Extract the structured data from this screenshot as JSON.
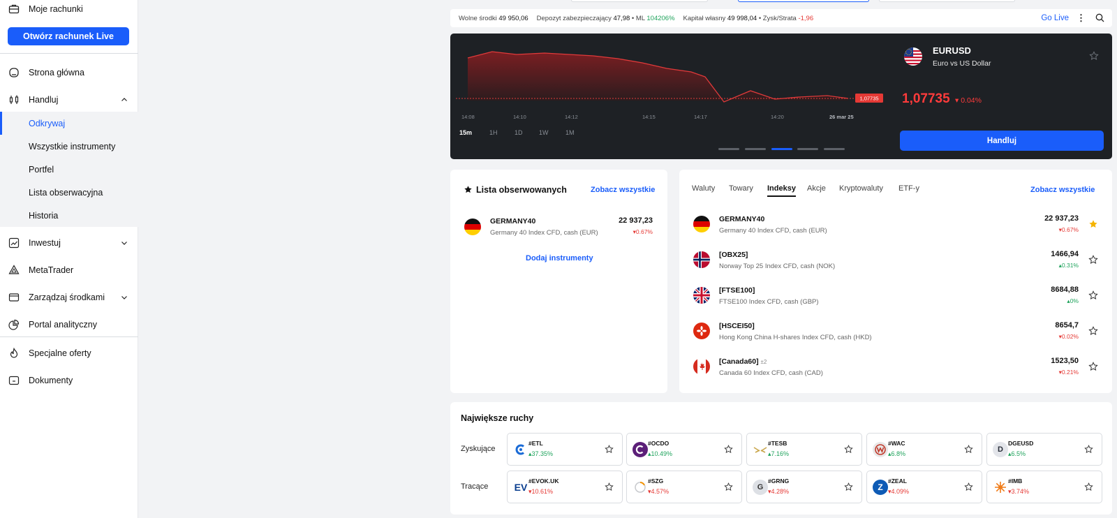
{
  "sidebar": {
    "accounts_label": "Moje rachunki",
    "open_live_label": "Otwórz rachunek Live",
    "home_label": "Strona główna",
    "trade_label": "Handluj",
    "trade_sub": [
      "Odkrywaj",
      "Wszystkie instrumenty",
      "Portfel",
      "Lista obserwacyjna",
      "Historia"
    ],
    "invest_label": "Inwestuj",
    "metatrader_label": "MetaTrader",
    "funds_label": "Zarządzaj środkami",
    "analytics_label": "Portal analityczny",
    "offers_label": "Specjalne oferty",
    "documents_label": "Dokumenty"
  },
  "account_bar": {
    "free_funds_label": "Wolne środki",
    "free_funds_value": "49 950,06",
    "margin_label": "Depozyt zabezpieczający",
    "margin_value": "47,98",
    "ml_label": "• ML",
    "ml_value": "104206%",
    "equity_label": "Kapitał własny",
    "equity_value": "49 998,04",
    "pl_label": "• Zysk/Strata",
    "pl_value": "-1,96",
    "go_live": "Go Live",
    "more": "⋮"
  },
  "chart": {
    "symbol": "EURUSD",
    "description": "Euro vs US Dollar",
    "price": "1,07735",
    "change": "0.04%",
    "price_tag": "1,07735",
    "time_labels": [
      "14:08",
      "14:10",
      "14:12",
      "14:15",
      "14:17",
      "14:20",
      "26 mar 25"
    ],
    "timeframes": [
      "15m",
      "1H",
      "1D",
      "1W",
      "1M"
    ],
    "active_timeframe": "15m",
    "trade_button": "Handluj",
    "colors": {
      "line": "#e03a3a",
      "area_top": "#7a1e22",
      "background": "#1e2125"
    }
  },
  "watchlist": {
    "title": "Lista obserwowanych",
    "see_all": "Zobacz wszystkie",
    "item": {
      "name": "GERMANY40",
      "desc": "Germany 40 Index CFD, cash (EUR)",
      "price": "22 937,23",
      "change": "0.67%"
    },
    "add_instruments": "Dodaj instrumenty"
  },
  "markets": {
    "tabs": [
      "Waluty",
      "Towary",
      "Indeksy",
      "Akcje",
      "Kryptowaluty",
      "ETF-y"
    ],
    "active_tab": "Indeksy",
    "see_all": "Zobacz wszystkie",
    "rows": [
      {
        "name": "GERMANY40",
        "sup": "",
        "desc": "Germany 40 Index CFD, cash (EUR)",
        "price": "22 937,23",
        "change": "0.67%",
        "dir": "down",
        "starred": true
      },
      {
        "name": "[OBX25]",
        "sup": "",
        "desc": "Norway Top 25 Index CFD, cash (NOK)",
        "price": "1466,94",
        "change": "0.31%",
        "dir": "up",
        "starred": false
      },
      {
        "name": "[FTSE100]",
        "sup": "",
        "desc": "FTSE100 Index CFD, cash (GBP)",
        "price": "8684,88",
        "change": "0%",
        "dir": "up",
        "starred": false
      },
      {
        "name": "[HSCEI50]",
        "sup": "",
        "desc": "Hong Kong China H-shares Index CFD, cash (HKD)",
        "price": "8654,7",
        "change": "0.02%",
        "dir": "down",
        "starred": false
      },
      {
        "name": "[Canada60]",
        "sup": "±2",
        "desc": "Canada 60 Index CFD, cash (CAD)",
        "price": "1523,50",
        "change": "0.21%",
        "dir": "down",
        "starred": false
      }
    ]
  },
  "movers": {
    "title": "Największe ruchy",
    "gainers_label": "Zyskujące",
    "losers_label": "Tracące",
    "gainers": [
      {
        "symbol": "#ETL",
        "change": "37.35%"
      },
      {
        "symbol": "#OCDO",
        "change": "10.49%"
      },
      {
        "symbol": "#TESB",
        "change": "7.16%"
      },
      {
        "symbol": "#WAC",
        "change": "6.8%"
      },
      {
        "symbol": "DGEUSD",
        "change": "6.5%"
      }
    ],
    "losers": [
      {
        "symbol": "#EVOK.UK",
        "change": "10.61%"
      },
      {
        "symbol": "#SZG",
        "change": "4.57%"
      },
      {
        "symbol": "#GRNG",
        "change": "4.28%"
      },
      {
        "symbol": "#ZEAL",
        "change": "4.09%"
      },
      {
        "symbol": "#IMB",
        "change": "3.74%"
      }
    ],
    "logo_letters": {
      "dgeusd": "D",
      "evok": "EV",
      "grng": "G",
      "zeal": "Z"
    }
  }
}
